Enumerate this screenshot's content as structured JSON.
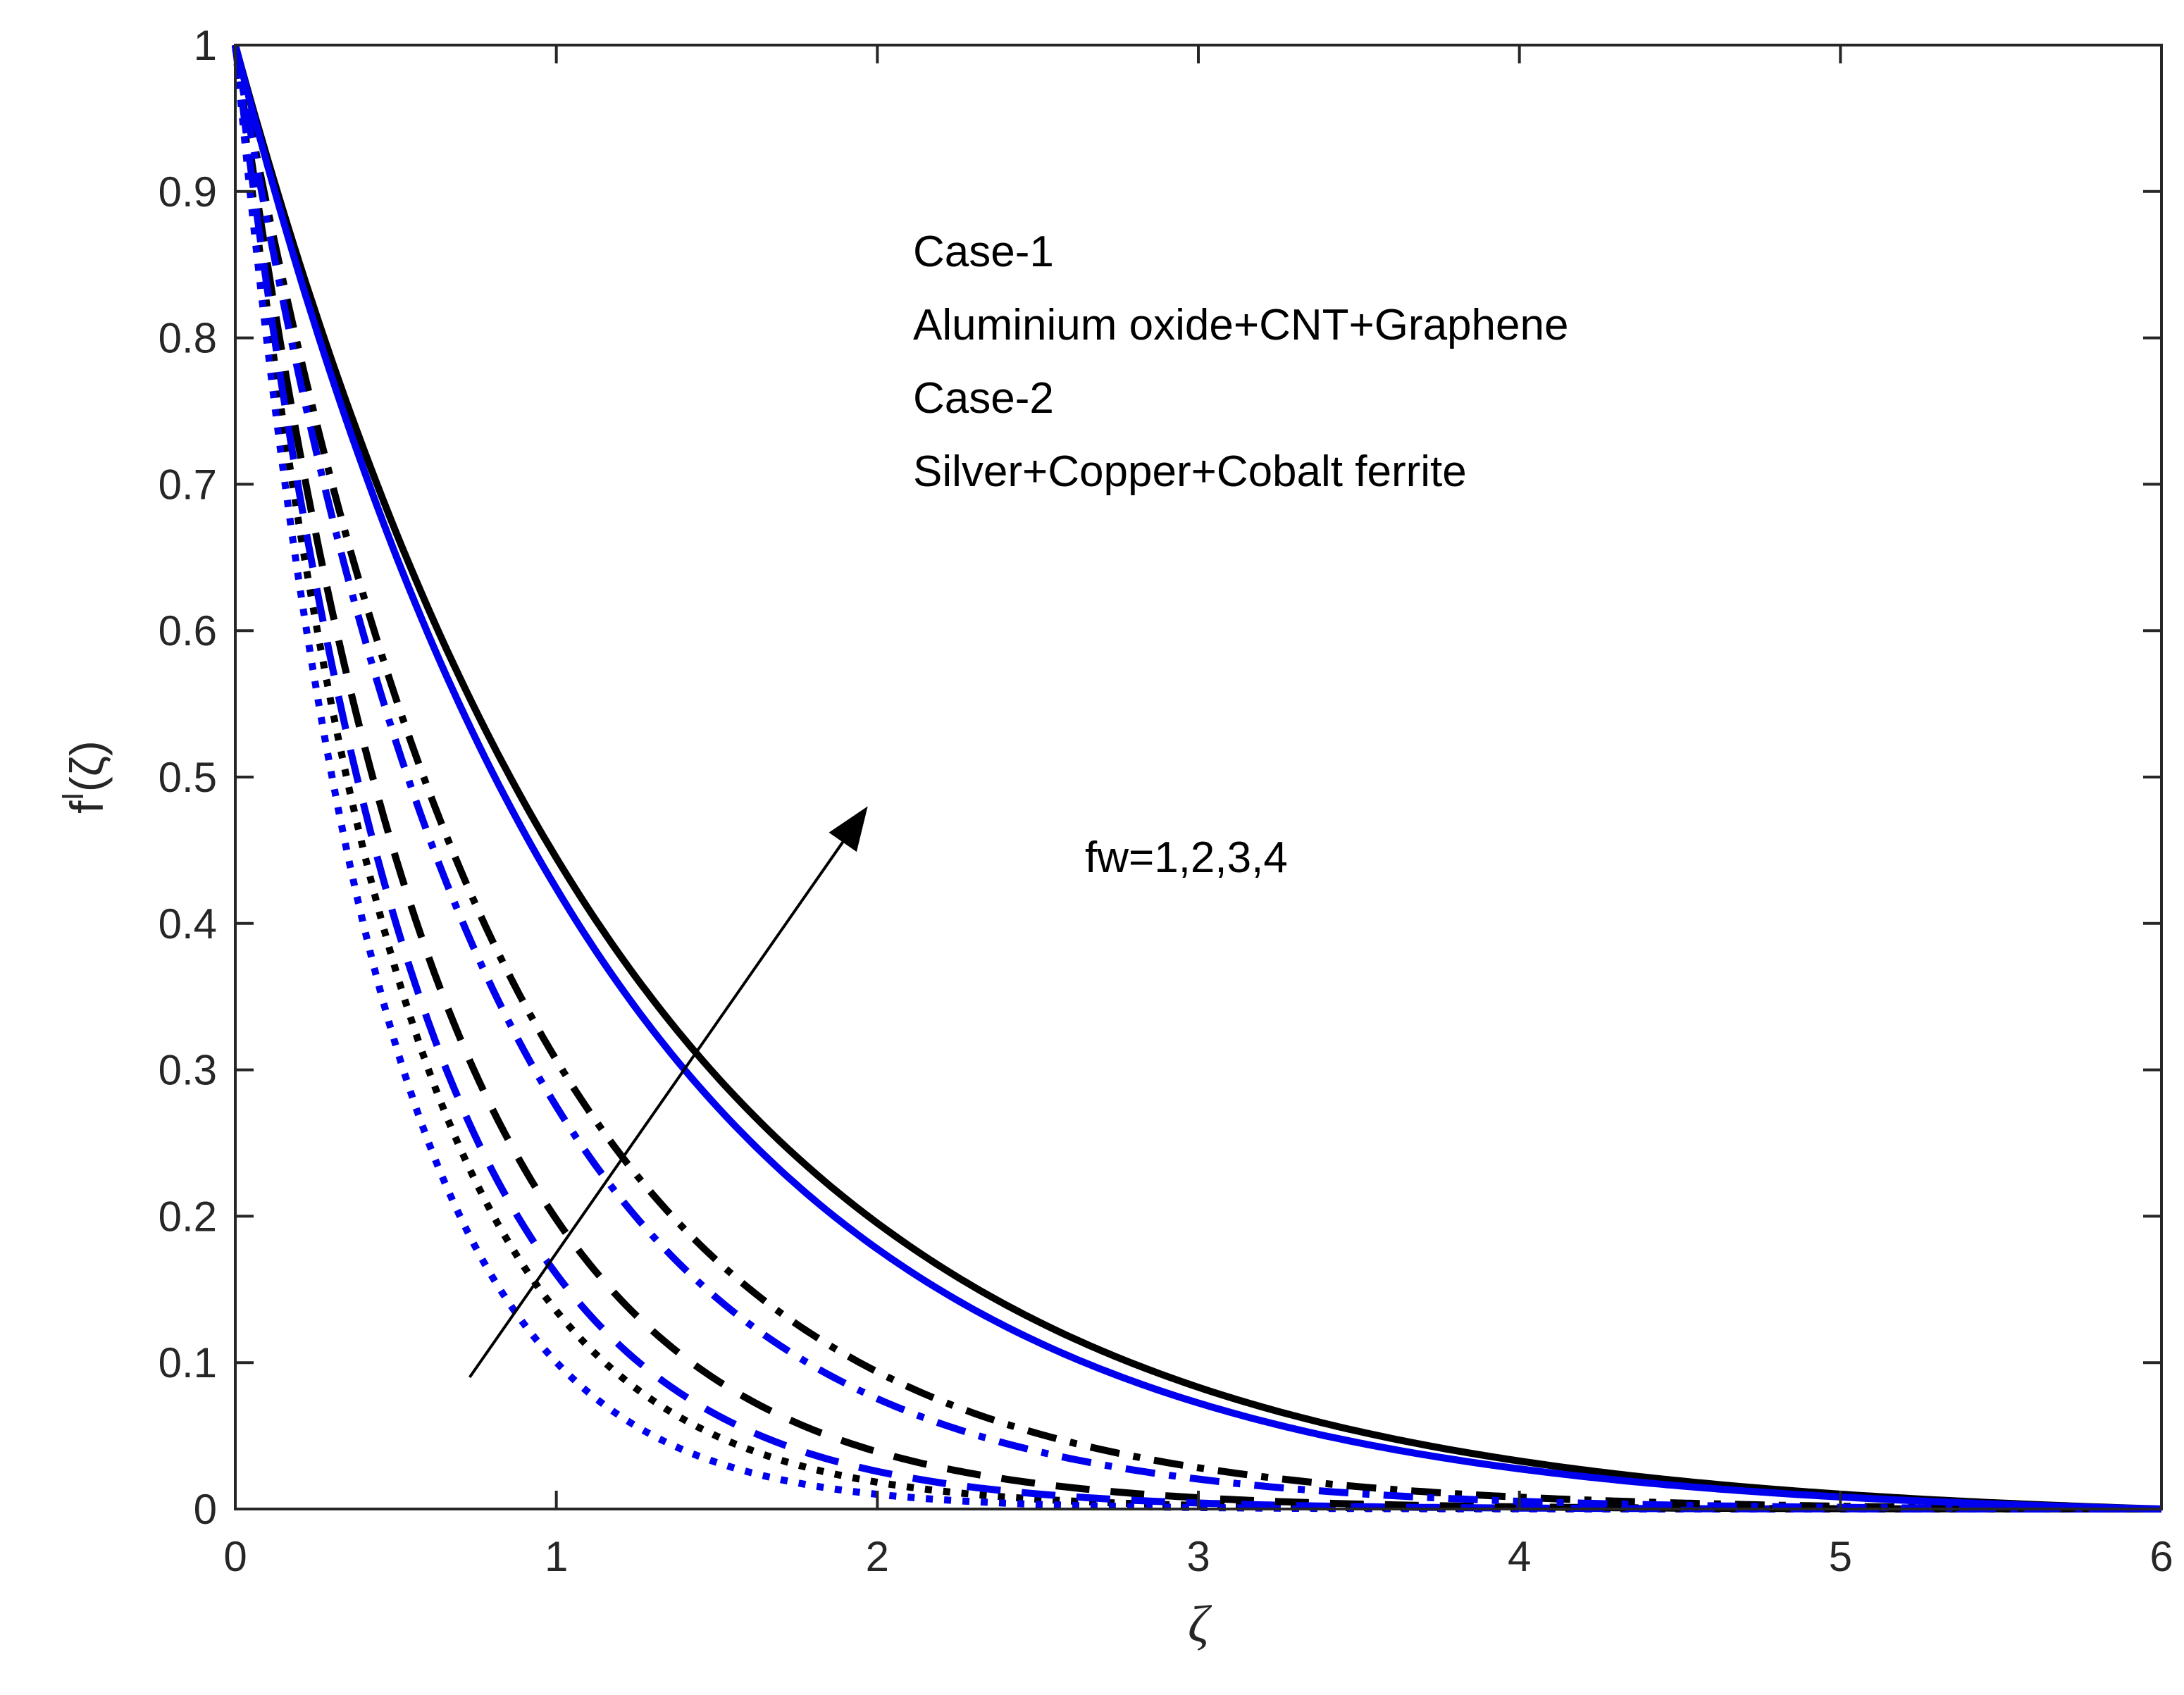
{
  "chart_data": {
    "type": "line",
    "title": "",
    "xlabel": "ζ",
    "ylabel_main": "f",
    "ylabel_sup": "I",
    "ylabel_arg": "(ζ)",
    "xlim": [
      0,
      6
    ],
    "ylim": [
      0,
      1
    ],
    "xticks": [
      0,
      1,
      2,
      3,
      4,
      5,
      6
    ],
    "xtick_labels": [
      "0",
      "1",
      "2",
      "3",
      "4",
      "5",
      "6"
    ],
    "yticks": [
      0,
      0.1,
      0.2,
      0.3,
      0.4,
      0.5,
      0.6,
      0.7,
      0.8,
      0.9,
      1
    ],
    "ytick_labels": [
      "0",
      "0.1",
      "0.2",
      "0.3",
      "0.4",
      "0.5",
      "0.6",
      "0.7",
      "0.8",
      "0.9",
      "1"
    ],
    "grid": false,
    "annotations": {
      "legend_lines": [
        "Case-1",
        "Aluminium oxide+CNT+Graphene",
        "Case-2",
        "Silver+Copper+Cobalt ferrite"
      ],
      "arrow_label": "fw=1,2,3,4",
      "arrow": {
        "from": [
          0.73,
          0.09
        ],
        "to": [
          1.97,
          0.48
        ]
      }
    },
    "series": [
      {
        "name": "Case-1, fw=1",
        "color": "#000000",
        "style": "dotted",
        "decay": 2.0
      },
      {
        "name": "Case-2, fw=1",
        "color": "#0000ee",
        "style": "dotted",
        "decay": 2.3
      },
      {
        "name": "Case-1, fw=2",
        "color": "#000000",
        "style": "dashed",
        "decay": 1.62
      },
      {
        "name": "Case-2, fw=2",
        "color": "#0000ee",
        "style": "dashed",
        "decay": 1.83
      },
      {
        "name": "Case-1, fw=3",
        "color": "#000000",
        "style": "dashdot",
        "decay": 1.18
      },
      {
        "name": "Case-2, fw=3",
        "color": "#0000ee",
        "style": "dashdot",
        "decay": 1.29
      },
      {
        "name": "Case-1, fw=4",
        "color": "#000000",
        "style": "solid",
        "decay": 0.8
      },
      {
        "name": "Case-2, fw=4",
        "color": "#0000ee",
        "style": "solid",
        "decay": 0.85
      }
    ]
  }
}
